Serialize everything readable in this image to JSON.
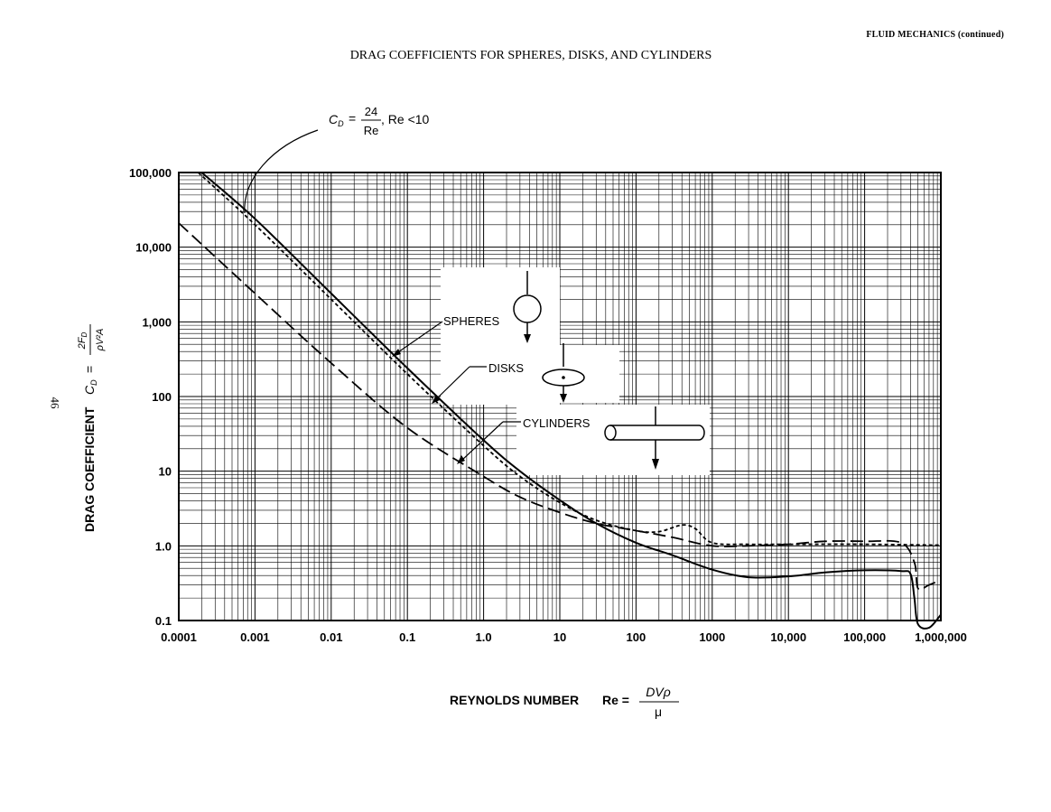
{
  "header": "FLUID MECHANICS (continued)",
  "page_number": "46",
  "chart_data": {
    "type": "line",
    "title": "DRAG COEFFICIENTS FOR SPHERES, DISKS, AND CYLINDERS",
    "xlabel": "REYNOLDS NUMBER",
    "xlabel_formula": {
      "lhs": "Re =",
      "numerator": "DVρ",
      "denominator": "μ"
    },
    "ylabel": "DRAG COEFFICIENT",
    "ylabel_formula": {
      "lhs": "C",
      "sub": "D",
      "eq": "=",
      "numerator": "2F",
      "numerator_sub": "D",
      "denominator": "ρV²A"
    },
    "x_scale": "log",
    "y_scale": "log",
    "xlim": [
      0.0001,
      1000000
    ],
    "ylim": [
      0.1,
      100000
    ],
    "grid": true,
    "x_ticks": [
      "0.0001",
      "0.001",
      "0.01",
      "0.1",
      "1.0",
      "10",
      "100",
      "1000",
      "10,000",
      "100,000",
      "1,000,000"
    ],
    "y_ticks": [
      "100,000",
      "10,000",
      "1,000",
      "100",
      "10",
      "1.0",
      "0.1"
    ],
    "annotation": {
      "lhs": "C",
      "sub": "D",
      "eq": "=",
      "numerator": "24",
      "denominator": "Re",
      "condition": ", Re <10"
    },
    "series": [
      {
        "name": "SPHERES",
        "style": "solid",
        "points": [
          [
            0.0002,
            100000
          ],
          [
            0.001,
            24000
          ],
          [
            0.01,
            2400
          ],
          [
            0.1,
            240
          ],
          [
            1,
            26
          ],
          [
            3,
            10
          ],
          [
            10,
            4.1
          ],
          [
            30,
            2.0
          ],
          [
            100,
            1.1
          ],
          [
            300,
            0.75
          ],
          [
            1000,
            0.48
          ],
          [
            3000,
            0.38
          ],
          [
            10000,
            0.39
          ],
          [
            30000,
            0.44
          ],
          [
            100000,
            0.47
          ],
          [
            300000,
            0.46
          ],
          [
            400000,
            0.42
          ],
          [
            450000,
            0.2
          ],
          [
            500000,
            0.09
          ],
          [
            700000,
            0.08
          ],
          [
            1000000,
            0.12
          ]
        ]
      },
      {
        "name": "DISKS",
        "style": "short-dash",
        "points": [
          [
            0.00018,
            100000
          ],
          [
            0.001,
            20000
          ],
          [
            0.01,
            2000
          ],
          [
            0.1,
            200
          ],
          [
            1,
            22
          ],
          [
            3,
            8.5
          ],
          [
            10,
            3.8
          ],
          [
            30,
            2.2
          ],
          [
            100,
            1.6
          ],
          [
            200,
            1.55
          ],
          [
            400,
            1.9
          ],
          [
            600,
            1.7
          ],
          [
            1000,
            1.1
          ],
          [
            3000,
            1.05
          ],
          [
            10000,
            1.05
          ],
          [
            100000,
            1.05
          ],
          [
            1000000,
            1.02
          ]
        ]
      },
      {
        "name": "CYLINDERS",
        "style": "long-dash",
        "points": [
          [
            0.0001,
            21000
          ],
          [
            0.001,
            2400
          ],
          [
            0.01,
            280
          ],
          [
            0.1,
            38
          ],
          [
            1,
            8.5
          ],
          [
            3,
            4.5
          ],
          [
            10,
            2.8
          ],
          [
            30,
            2.0
          ],
          [
            100,
            1.6
          ],
          [
            300,
            1.3
          ],
          [
            1000,
            1.0
          ],
          [
            3000,
            1.0
          ],
          [
            10000,
            1.05
          ],
          [
            30000,
            1.15
          ],
          [
            100000,
            1.15
          ],
          [
            300000,
            1.1
          ],
          [
            450000,
            0.6
          ],
          [
            500000,
            0.27
          ],
          [
            700000,
            0.3
          ],
          [
            1000000,
            0.35
          ]
        ]
      }
    ]
  }
}
